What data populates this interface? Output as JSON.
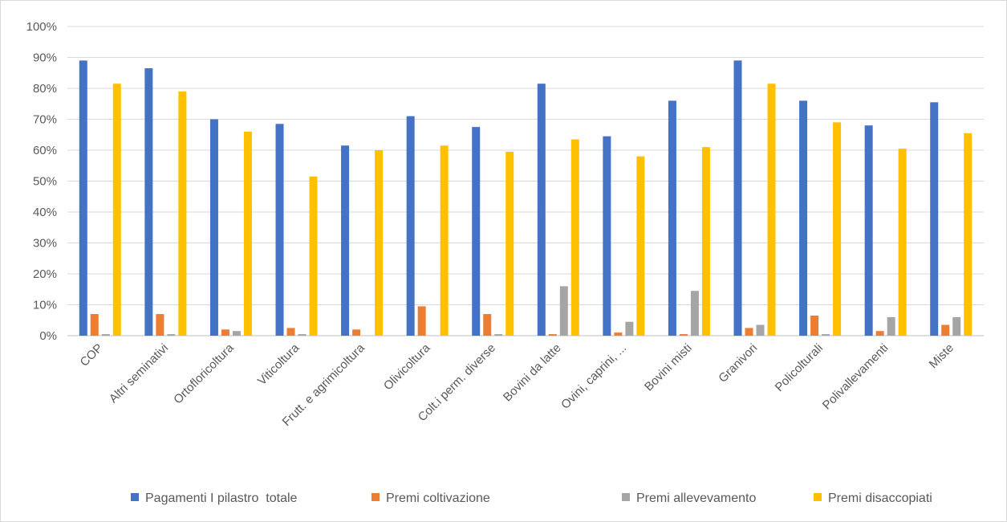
{
  "chart_data": {
    "type": "bar",
    "title": "",
    "xlabel": "",
    "ylabel": "",
    "ylim": [
      0,
      100
    ],
    "y_ticks": [
      "0%",
      "10%",
      "20%",
      "30%",
      "40%",
      "50%",
      "60%",
      "70%",
      "80%",
      "90%",
      "100%"
    ],
    "grid": true,
    "legend_position": "bottom",
    "categories": [
      "COP",
      "Altri seminativi",
      "Ortofloricoltura",
      "Viticoltura",
      "Frutt. e agrimicoltura",
      "Olivicoltura",
      "Colt.i perm. diverse",
      "Bovini da latte",
      "Ovini, caprini, ...",
      "Bovini misti",
      "Granivori",
      "Policolturali",
      "Polivallevamenti",
      "Miste"
    ],
    "series": [
      {
        "name": "Pagamenti I pilastro  totale",
        "color": "#4472c4",
        "values": [
          89,
          86.5,
          70,
          68.5,
          61.5,
          71,
          67.5,
          81.5,
          64.5,
          76,
          89,
          76,
          68,
          75.5
        ]
      },
      {
        "name": "Premi coltivazione",
        "color": "#ed7d31",
        "values": [
          7,
          7,
          2,
          2.5,
          2,
          9.5,
          7,
          0.5,
          1,
          0.5,
          2.5,
          6.5,
          1.5,
          3.5
        ]
      },
      {
        "name": "Premi allevevamento",
        "color": "#a5a5a5",
        "values": [
          0.5,
          0.5,
          1.5,
          0.5,
          0,
          0,
          0.5,
          16,
          4.5,
          14.5,
          3.5,
          0.5,
          6,
          6
        ]
      },
      {
        "name": "Premi disaccopiati",
        "color": "#ffc000",
        "values": [
          81.5,
          79,
          66,
          51.5,
          60,
          61.5,
          59.5,
          63.5,
          58,
          61,
          81.5,
          69,
          60.5,
          65.5
        ]
      }
    ]
  }
}
